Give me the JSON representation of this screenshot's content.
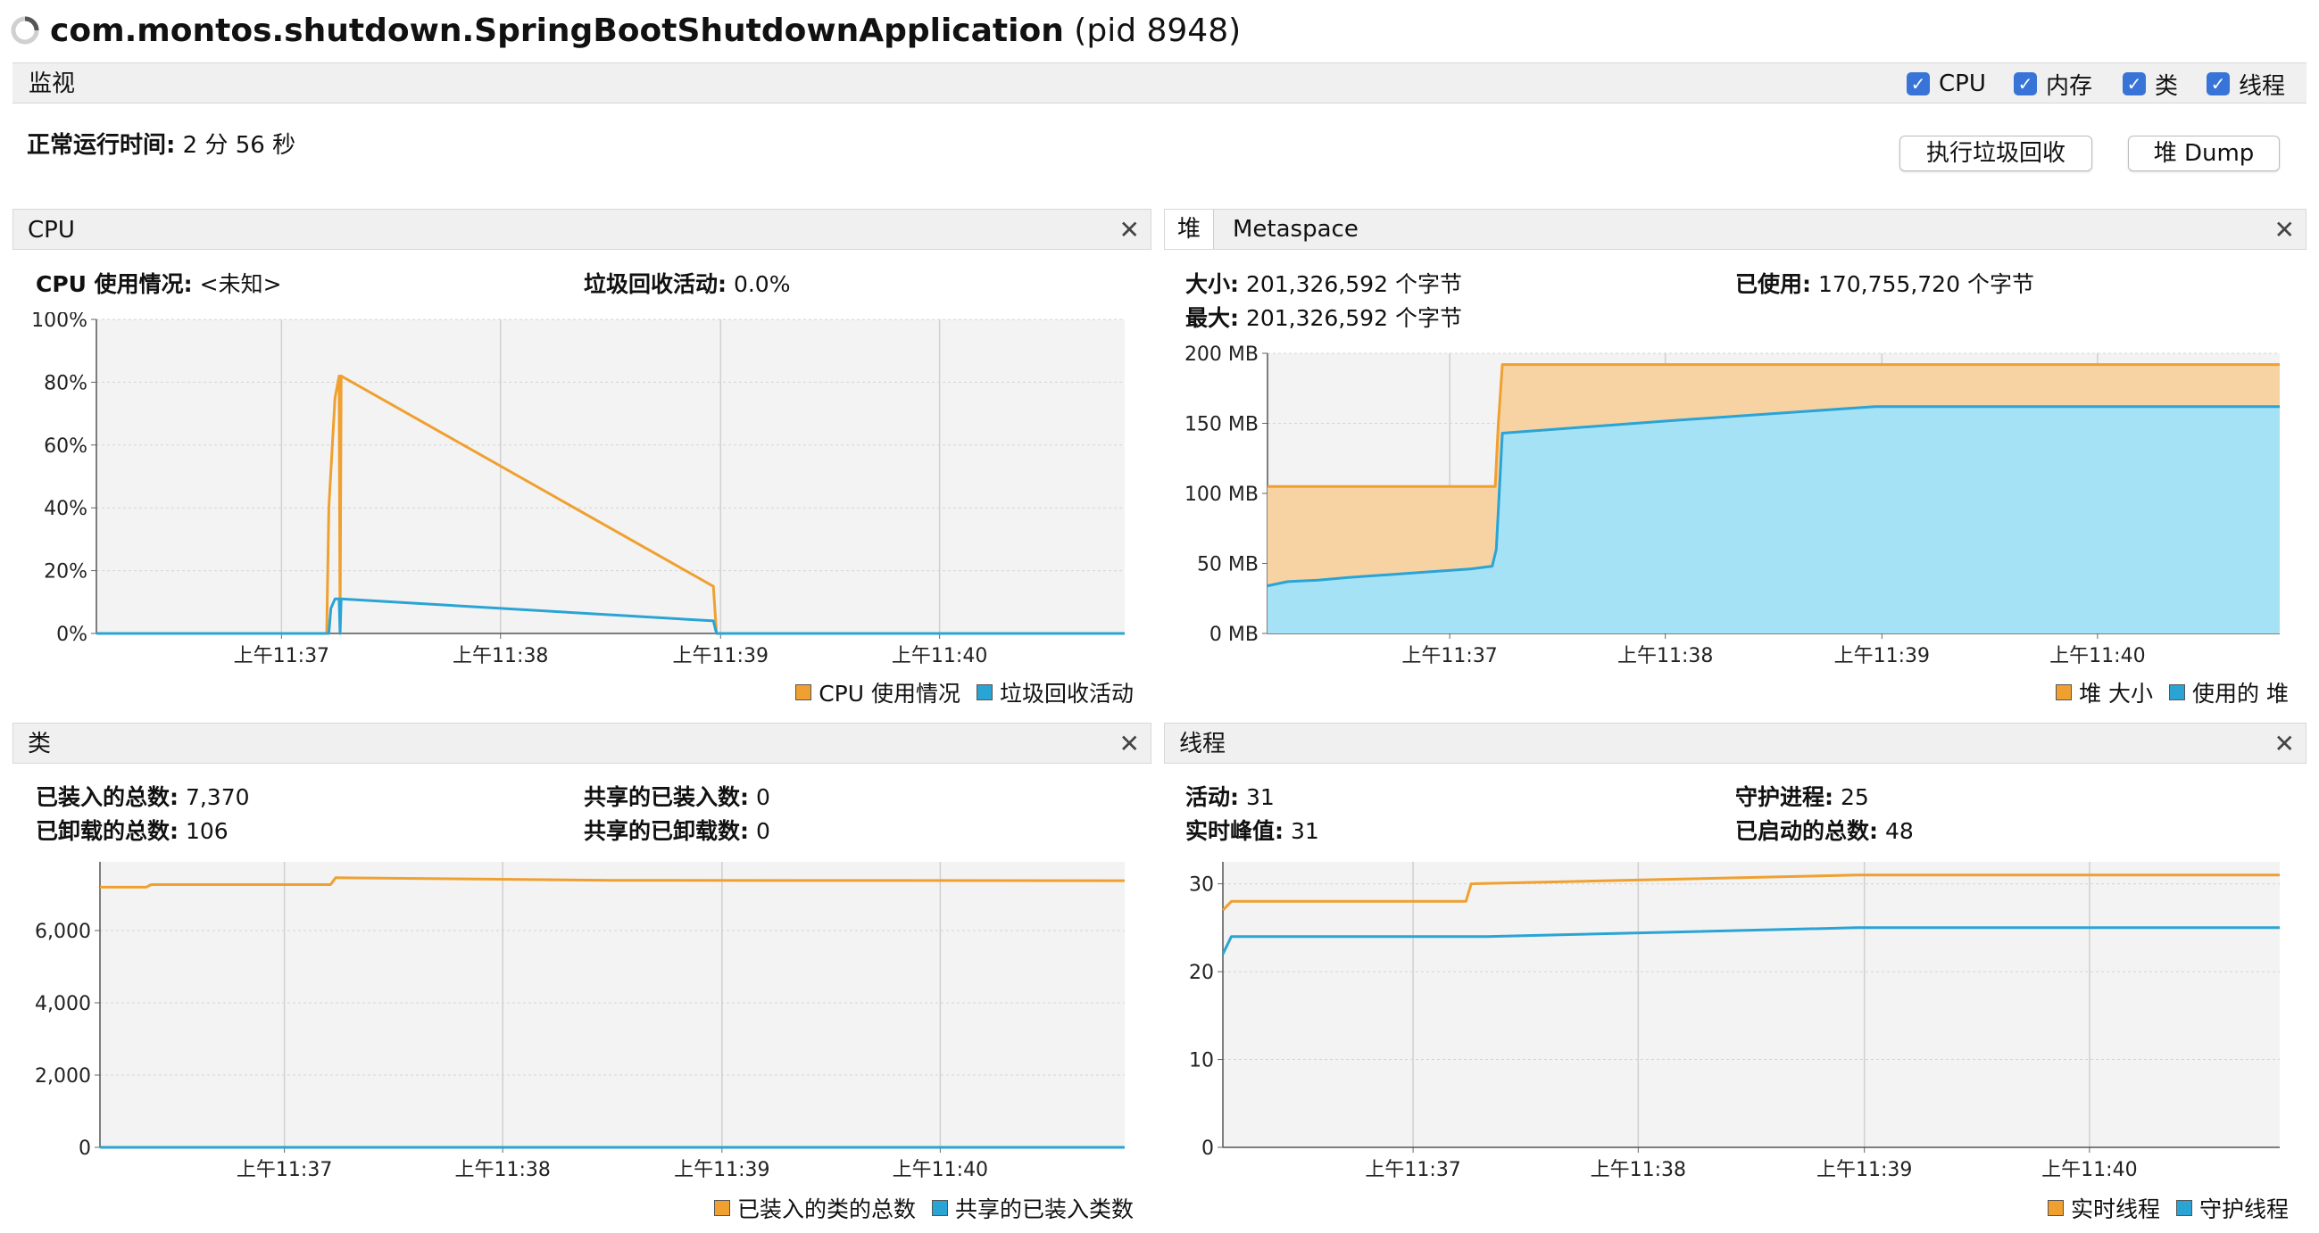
{
  "window": {
    "title_main": "com.montos.shutdown.SpringBootShutdownApplication",
    "title_pid": " (pid 8948)"
  },
  "monitor": {
    "label": "监视",
    "checkboxes": [
      {
        "label": "CPU",
        "checked": true
      },
      {
        "label": "内存",
        "checked": true
      },
      {
        "label": "类",
        "checked": true
      },
      {
        "label": "线程",
        "checked": true
      }
    ],
    "uptime_label": "正常运行时间:",
    "uptime_value": "2 分 56 秒",
    "gc_button": "执行垃圾回收",
    "heap_dump_button": "堆 Dump"
  },
  "colors": {
    "orange": "#F0A030",
    "blue": "#2AA4D5",
    "orange_fill": "#F7D3A3",
    "blue_fill": "#A6E2F5",
    "plot_bg": "#F3F3F3"
  },
  "cpu_panel": {
    "title": "CPU",
    "usage_label": "CPU 使用情况:",
    "usage_value": "<未知>",
    "gc_label": "垃圾回收活动:",
    "gc_value": "0.0%",
    "legend": [
      "CPU 使用情况",
      "垃圾回收活动"
    ],
    "chart_data": {
      "type": "line",
      "y_ticks": [
        "100%",
        "80%",
        "60%",
        "40%",
        "20%",
        "0%"
      ],
      "x_ticks": [
        "上午11:37",
        "上午11:38",
        "上午11:39",
        "上午11:40"
      ],
      "ylim": [
        0,
        100
      ],
      "series": [
        {
          "name": "CPU 使用情况",
          "color": "#F0A030",
          "points": [
            [
              0,
              0
            ],
            [
              0.224,
              0
            ],
            [
              0.226,
              40
            ],
            [
              0.232,
              75
            ],
            [
              0.236,
              82
            ],
            [
              0.237,
              0
            ],
            [
              0.238,
              82
            ],
            [
              0.6,
              15
            ],
            [
              0.603,
              0
            ],
            [
              1,
              0
            ]
          ]
        },
        {
          "name": "垃圾回收活动",
          "color": "#2AA4D5",
          "points": [
            [
              0,
              0
            ],
            [
              0.226,
              0
            ],
            [
              0.228,
              8
            ],
            [
              0.232,
              11
            ],
            [
              0.236,
              11
            ],
            [
              0.237,
              0
            ],
            [
              0.238,
              11
            ],
            [
              0.6,
              4
            ],
            [
              0.603,
              0
            ],
            [
              1,
              0
            ]
          ]
        }
      ]
    }
  },
  "heap_panel": {
    "tabs": [
      "堆",
      "Metaspace"
    ],
    "size_label": "大小:",
    "size_value": "201,326,592 个字节",
    "max_label": "最大:",
    "max_value": "201,326,592 个字节",
    "used_label": "已使用:",
    "used_value": "170,755,720 个字节",
    "legend": [
      "堆 大小",
      "使用的 堆"
    ],
    "chart_data": {
      "type": "area",
      "y_ticks": [
        "200 MB",
        "150 MB",
        "100 MB",
        "50 MB",
        "0 MB"
      ],
      "x_ticks": [
        "上午11:37",
        "上午11:38",
        "上午11:39",
        "上午11:40"
      ],
      "ylim": [
        0,
        200
      ],
      "series": [
        {
          "name": "堆 大小",
          "color": "#F0A030",
          "points": [
            [
              0,
              105
            ],
            [
              0.225,
              105
            ],
            [
              0.228,
              150
            ],
            [
              0.232,
              192
            ],
            [
              1,
              192
            ]
          ]
        },
        {
          "name": "使用的 堆",
          "color": "#2AA4D5",
          "points": [
            [
              0,
              34
            ],
            [
              0.02,
              37
            ],
            [
              0.05,
              38
            ],
            [
              0.08,
              40
            ],
            [
              0.12,
              42
            ],
            [
              0.16,
              44
            ],
            [
              0.2,
              46
            ],
            [
              0.222,
              48
            ],
            [
              0.226,
              60
            ],
            [
              0.232,
              143
            ],
            [
              0.4,
              152
            ],
            [
              0.6,
              162
            ],
            [
              1,
              162
            ]
          ]
        }
      ]
    }
  },
  "classes_panel": {
    "title": "类",
    "loaded_label": "已装入的总数:",
    "loaded_value": "7,370",
    "unloaded_label": "已卸载的总数:",
    "unloaded_value": "106",
    "shared_loaded_label": "共享的已装入数:",
    "shared_loaded_value": "0",
    "shared_unloaded_label": "共享的已卸载数:",
    "shared_unloaded_value": "0",
    "legend": [
      "已装入的类的总数",
      "共享的已装入类数"
    ],
    "chart_data": {
      "type": "line",
      "y_ticks": [
        "6,000",
        "4,000",
        "2,000",
        "0"
      ],
      "x_ticks": [
        "上午11:37",
        "上午11:38",
        "上午11:39",
        "上午11:40"
      ],
      "ylim": [
        0,
        7900
      ],
      "series": [
        {
          "name": "已装入的类的总数",
          "color": "#F0A030",
          "points": [
            [
              0,
              7200
            ],
            [
              0.045,
              7200
            ],
            [
              0.05,
              7270
            ],
            [
              0.225,
              7270
            ],
            [
              0.23,
              7460
            ],
            [
              0.5,
              7390
            ],
            [
              1,
              7380
            ]
          ]
        },
        {
          "name": "共享的已装入类数",
          "color": "#2AA4D5",
          "points": [
            [
              0,
              0
            ],
            [
              1,
              0
            ]
          ]
        }
      ]
    }
  },
  "threads_panel": {
    "title": "线程",
    "live_label": "活动:",
    "live_value": "31",
    "peak_label": "实时峰值:",
    "peak_value": "31",
    "daemon_label": "守护进程:",
    "daemon_value": "25",
    "total_label": "已启动的总数:",
    "total_value": "48",
    "legend": [
      "实时线程",
      "守护线程"
    ],
    "chart_data": {
      "type": "line",
      "y_ticks": [
        "30",
        "20",
        "10",
        "0"
      ],
      "x_ticks": [
        "上午11:37",
        "上午11:38",
        "上午11:39",
        "上午11:40"
      ],
      "ylim": [
        0,
        32.5
      ],
      "series": [
        {
          "name": "实时线程",
          "color": "#F0A030",
          "points": [
            [
              0,
              27
            ],
            [
              0.008,
              28
            ],
            [
              0.23,
              28
            ],
            [
              0.235,
              30
            ],
            [
              0.6,
              31
            ],
            [
              1,
              31
            ]
          ]
        },
        {
          "name": "守护线程",
          "color": "#2AA4D5",
          "points": [
            [
              0,
              22
            ],
            [
              0.008,
              24
            ],
            [
              0.25,
              24
            ],
            [
              0.6,
              25
            ],
            [
              1,
              25
            ]
          ]
        }
      ]
    }
  }
}
